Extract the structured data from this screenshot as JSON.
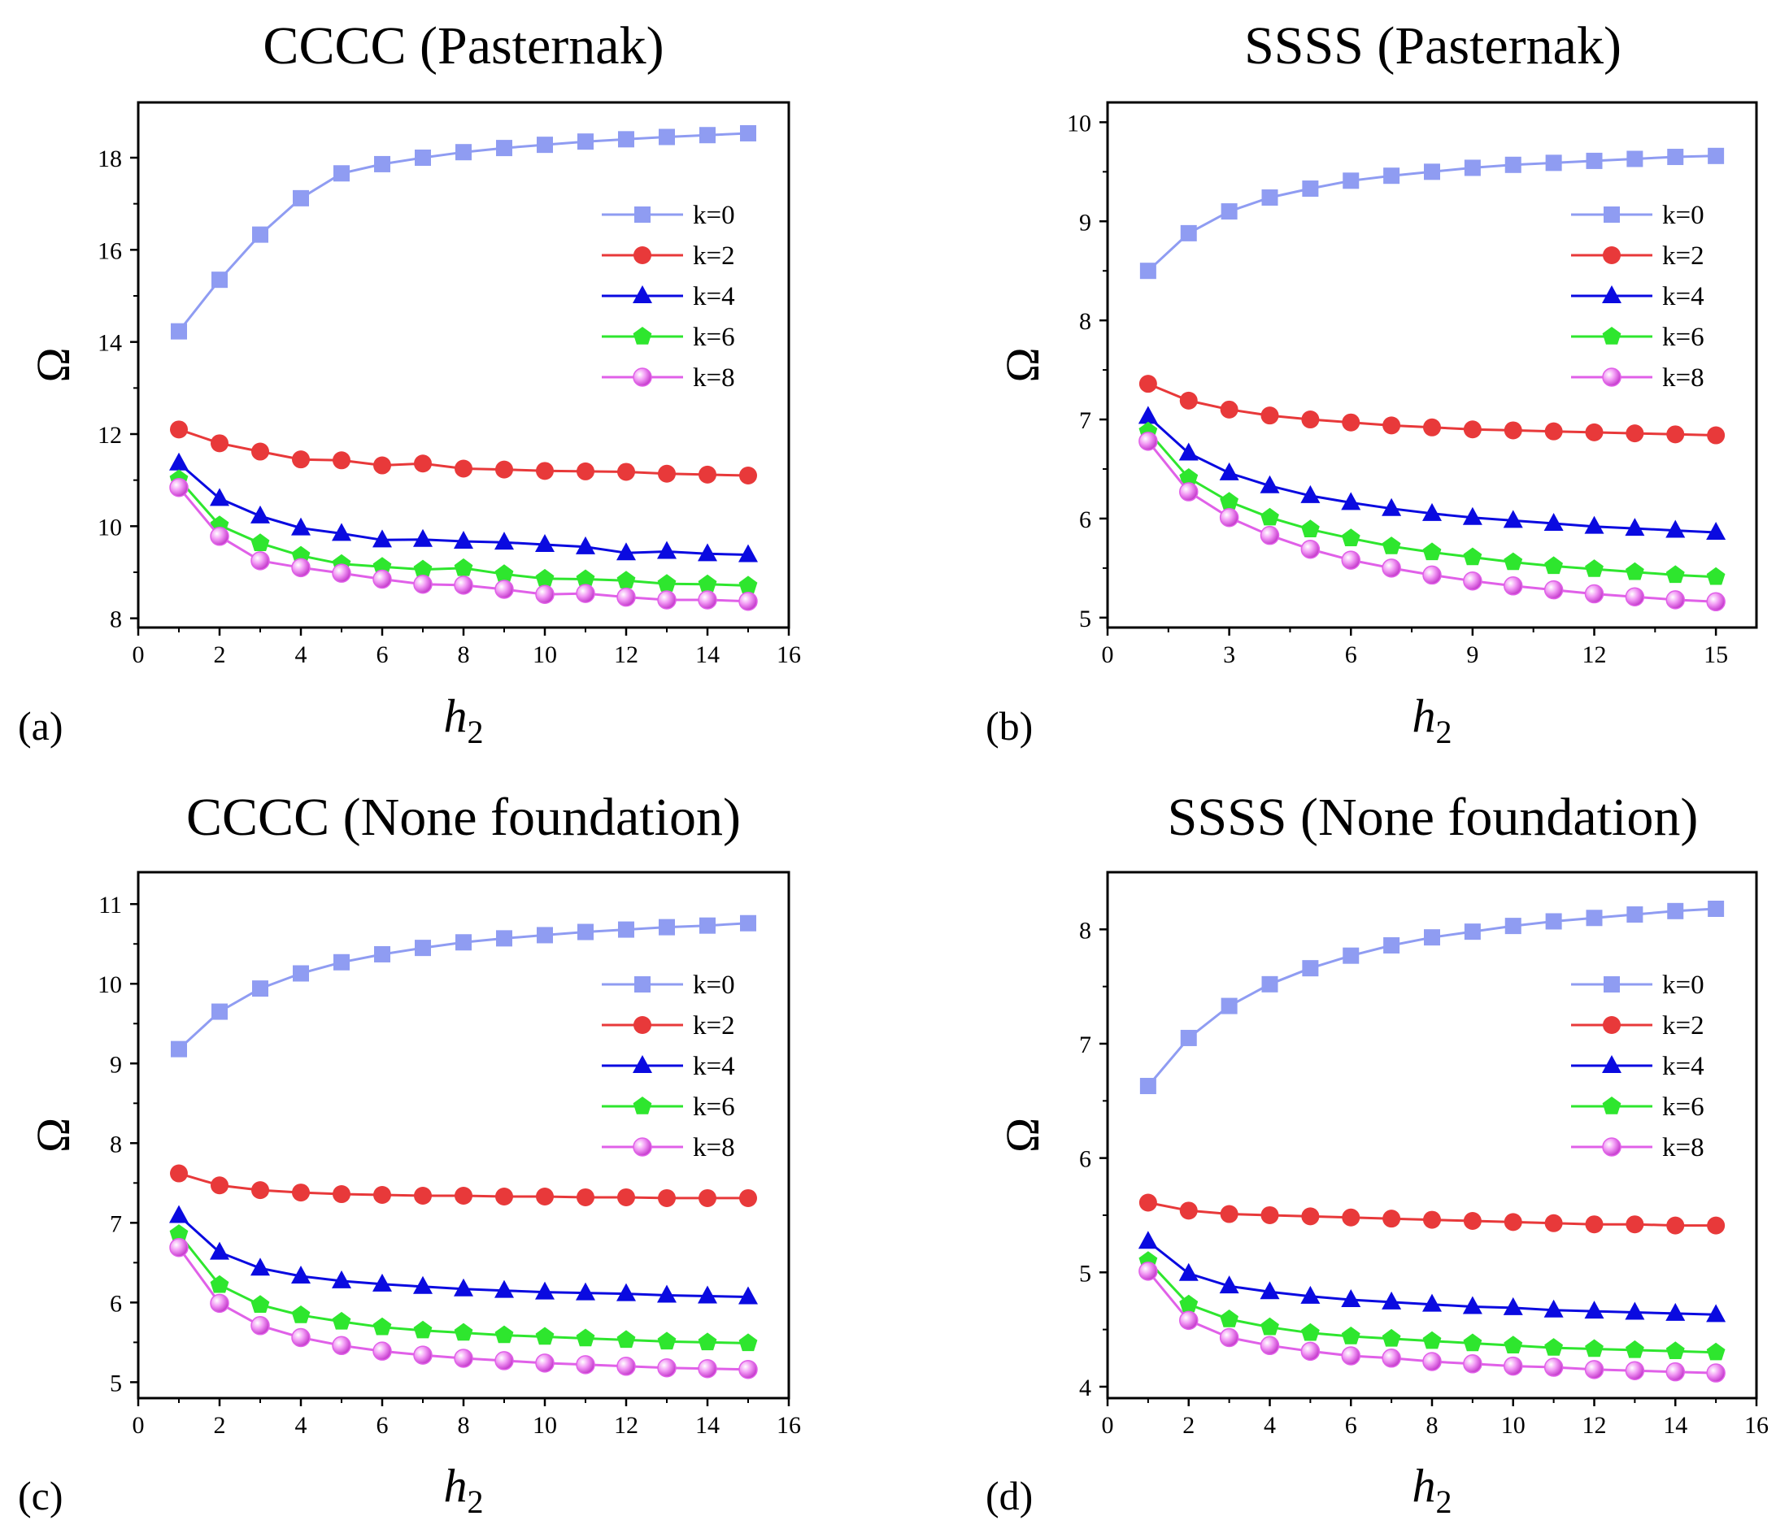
{
  "chart_data": [
    {
      "type": "line",
      "panel_label": "(a)",
      "title": "CCCC (Pasternak)",
      "xlabel": "h",
      "xlabel_subscript": "2",
      "ylabel": "Ω",
      "xlim": [
        0,
        16
      ],
      "ylim": [
        7.8,
        19.2
      ],
      "xticks": [
        0,
        2,
        4,
        6,
        8,
        10,
        12,
        14,
        16
      ],
      "yticks": [
        8,
        10,
        12,
        14,
        16,
        18
      ],
      "legend_position": "right-middle",
      "x": [
        1,
        2,
        3,
        4,
        5,
        6,
        7,
        8,
        9,
        10,
        11,
        12,
        13,
        14,
        15
      ],
      "series": [
        {
          "name": "k=0",
          "color": "#8F9CF2",
          "marker": "square",
          "values": [
            14.23,
            15.35,
            16.33,
            17.12,
            17.66,
            17.86,
            18.0,
            18.12,
            18.21,
            18.28,
            18.35,
            18.4,
            18.45,
            18.49,
            18.53
          ]
        },
        {
          "name": "k=2",
          "color": "#E8393A",
          "marker": "circle",
          "values": [
            12.1,
            11.8,
            11.62,
            11.45,
            11.43,
            11.32,
            11.36,
            11.25,
            11.23,
            11.2,
            11.19,
            11.18,
            11.14,
            11.12,
            11.1
          ]
        },
        {
          "name": "k=4",
          "color": "#0A0AE0",
          "marker": "triangle",
          "values": [
            11.37,
            10.6,
            10.22,
            9.96,
            9.84,
            9.7,
            9.71,
            9.67,
            9.65,
            9.6,
            9.55,
            9.42,
            9.45,
            9.4,
            9.38
          ]
        },
        {
          "name": "k=6",
          "color": "#2EE62E",
          "marker": "pentagon",
          "values": [
            11.02,
            10.02,
            9.63,
            9.36,
            9.18,
            9.12,
            9.06,
            9.09,
            8.96,
            8.86,
            8.85,
            8.82,
            8.75,
            8.74,
            8.71
          ]
        },
        {
          "name": "k=8",
          "color": "#E060E8",
          "marker": "sphere",
          "values": [
            10.84,
            9.78,
            9.25,
            9.1,
            8.98,
            8.85,
            8.74,
            8.72,
            8.63,
            8.52,
            8.54,
            8.46,
            8.4,
            8.4,
            8.37
          ]
        }
      ]
    },
    {
      "type": "line",
      "panel_label": "(b)",
      "title": "SSSS  (Pasternak)",
      "xlabel": "h",
      "xlabel_subscript": "2",
      "ylabel": "Ω",
      "xlim": [
        0,
        16
      ],
      "ylim": [
        4.9,
        10.2
      ],
      "xticks": [
        0,
        3,
        6,
        9,
        12,
        15
      ],
      "yticks": [
        5,
        6,
        7,
        8,
        9,
        10
      ],
      "legend_position": "right-middle",
      "x": [
        1,
        2,
        3,
        4,
        5,
        6,
        7,
        8,
        9,
        10,
        11,
        12,
        13,
        14,
        15
      ],
      "series": [
        {
          "name": "k=0",
          "color": "#8F9CF2",
          "marker": "square",
          "values": [
            8.5,
            8.88,
            9.1,
            9.24,
            9.33,
            9.41,
            9.46,
            9.5,
            9.54,
            9.57,
            9.59,
            9.61,
            9.63,
            9.65,
            9.66
          ]
        },
        {
          "name": "k=2",
          "color": "#E8393A",
          "marker": "circle",
          "values": [
            7.36,
            7.19,
            7.1,
            7.04,
            7.0,
            6.97,
            6.94,
            6.92,
            6.9,
            6.89,
            6.88,
            6.87,
            6.86,
            6.85,
            6.84
          ]
        },
        {
          "name": "k=4",
          "color": "#0A0AE0",
          "marker": "triangle",
          "values": [
            7.03,
            6.66,
            6.46,
            6.33,
            6.23,
            6.16,
            6.1,
            6.05,
            6.01,
            5.98,
            5.95,
            5.92,
            5.9,
            5.88,
            5.86
          ]
        },
        {
          "name": "k=6",
          "color": "#2EE62E",
          "marker": "pentagon",
          "values": [
            6.88,
            6.41,
            6.17,
            6.01,
            5.89,
            5.8,
            5.72,
            5.66,
            5.61,
            5.56,
            5.52,
            5.49,
            5.46,
            5.43,
            5.41
          ]
        },
        {
          "name": "k=8",
          "color": "#E060E8",
          "marker": "sphere",
          "values": [
            6.78,
            6.27,
            6.01,
            5.83,
            5.69,
            5.58,
            5.5,
            5.43,
            5.37,
            5.32,
            5.28,
            5.24,
            5.21,
            5.18,
            5.16
          ]
        }
      ]
    },
    {
      "type": "line",
      "panel_label": "(c)",
      "title": "CCCC (None foundation)",
      "xlabel": "h",
      "xlabel_subscript": "2",
      "ylabel": "Ω",
      "xlim": [
        0,
        16
      ],
      "ylim": [
        4.8,
        11.4
      ],
      "xticks": [
        0,
        2,
        4,
        6,
        8,
        10,
        12,
        14,
        16
      ],
      "yticks": [
        5,
        6,
        7,
        8,
        9,
        10,
        11
      ],
      "legend_position": "right-middle",
      "x": [
        1,
        2,
        3,
        4,
        5,
        6,
        7,
        8,
        9,
        10,
        11,
        12,
        13,
        14,
        15
      ],
      "series": [
        {
          "name": "k=0",
          "color": "#8F9CF2",
          "marker": "square",
          "values": [
            9.18,
            9.65,
            9.94,
            10.13,
            10.27,
            10.37,
            10.45,
            10.52,
            10.57,
            10.61,
            10.65,
            10.68,
            10.71,
            10.73,
            10.76
          ]
        },
        {
          "name": "k=2",
          "color": "#E8393A",
          "marker": "circle",
          "values": [
            7.62,
            7.47,
            7.41,
            7.38,
            7.36,
            7.35,
            7.34,
            7.34,
            7.33,
            7.33,
            7.32,
            7.32,
            7.31,
            7.31,
            7.31
          ]
        },
        {
          "name": "k=4",
          "color": "#0A0AE0",
          "marker": "triangle",
          "values": [
            7.09,
            6.63,
            6.43,
            6.33,
            6.27,
            6.23,
            6.2,
            6.17,
            6.15,
            6.13,
            6.12,
            6.11,
            6.09,
            6.08,
            6.07
          ]
        },
        {
          "name": "k=6",
          "color": "#2EE62E",
          "marker": "pentagon",
          "values": [
            6.86,
            6.22,
            5.97,
            5.84,
            5.76,
            5.69,
            5.65,
            5.62,
            5.59,
            5.57,
            5.55,
            5.53,
            5.51,
            5.5,
            5.49
          ]
        },
        {
          "name": "k=8",
          "color": "#E060E8",
          "marker": "sphere",
          "values": [
            6.69,
            5.99,
            5.71,
            5.56,
            5.46,
            5.39,
            5.34,
            5.3,
            5.27,
            5.24,
            5.22,
            5.2,
            5.18,
            5.17,
            5.16
          ]
        }
      ]
    },
    {
      "type": "line",
      "panel_label": "(d)",
      "title": "SSSS (None foundation)",
      "xlabel": "h",
      "xlabel_subscript": "2",
      "ylabel": "Ω",
      "xlim": [
        0,
        16
      ],
      "ylim": [
        3.9,
        8.5
      ],
      "xticks": [
        0,
        2,
        4,
        6,
        8,
        10,
        12,
        14,
        16
      ],
      "yticks": [
        4,
        5,
        6,
        7,
        8
      ],
      "legend_position": "right-middle",
      "x": [
        1,
        2,
        3,
        4,
        5,
        6,
        7,
        8,
        9,
        10,
        11,
        12,
        13,
        14,
        15
      ],
      "series": [
        {
          "name": "k=0",
          "color": "#8F9CF2",
          "marker": "square",
          "values": [
            6.63,
            7.05,
            7.33,
            7.52,
            7.66,
            7.77,
            7.86,
            7.93,
            7.98,
            8.03,
            8.07,
            8.1,
            8.13,
            8.16,
            8.18
          ]
        },
        {
          "name": "k=2",
          "color": "#E8393A",
          "marker": "circle",
          "values": [
            5.61,
            5.54,
            5.51,
            5.5,
            5.49,
            5.48,
            5.47,
            5.46,
            5.45,
            5.44,
            5.43,
            5.42,
            5.42,
            5.41,
            5.41
          ]
        },
        {
          "name": "k=4",
          "color": "#0A0AE0",
          "marker": "triangle",
          "values": [
            5.27,
            4.99,
            4.88,
            4.83,
            4.79,
            4.76,
            4.74,
            4.72,
            4.7,
            4.69,
            4.67,
            4.66,
            4.65,
            4.64,
            4.63
          ]
        },
        {
          "name": "k=6",
          "color": "#2EE62E",
          "marker": "pentagon",
          "values": [
            5.1,
            4.72,
            4.59,
            4.52,
            4.47,
            4.44,
            4.42,
            4.4,
            4.38,
            4.36,
            4.34,
            4.33,
            4.32,
            4.31,
            4.3
          ]
        },
        {
          "name": "k=8",
          "color": "#E060E8",
          "marker": "sphere",
          "values": [
            5.01,
            4.58,
            4.43,
            4.36,
            4.31,
            4.27,
            4.25,
            4.22,
            4.2,
            4.18,
            4.17,
            4.15,
            4.14,
            4.13,
            4.12
          ]
        }
      ]
    }
  ]
}
